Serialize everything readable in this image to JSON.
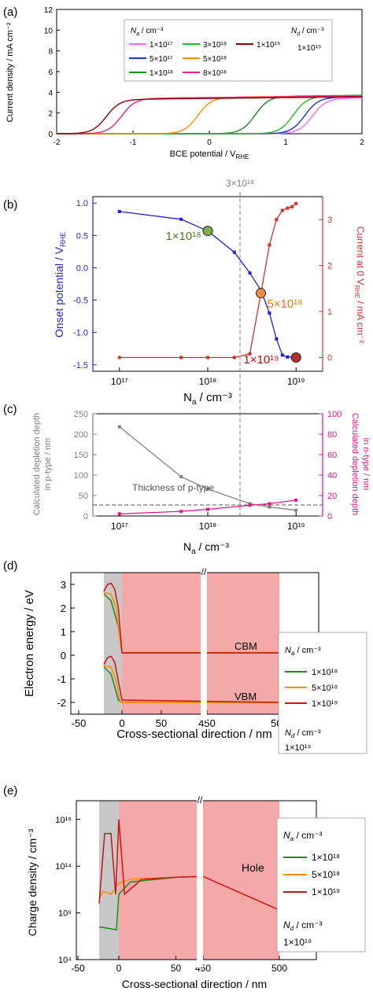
{
  "colors": {
    "axis_red": "#d0312d",
    "axis_blue": "#2222cc",
    "axis_gray": "#808080",
    "axis_pink": "#e0168a",
    "shade_gray": "#c8c8c8",
    "shade_red": "#f5a8a8"
  },
  "panel_a": {
    "label": "(a)",
    "ylabel": "Current density / mA cm⁻²",
    "xlabel_main": "BCE potential / V",
    "xlabel_sub": "RHE",
    "yticks": [
      "0",
      "2",
      "4",
      "6",
      "8",
      "10",
      "12"
    ],
    "xticks": [
      "-2",
      "-1",
      "0",
      "1",
      "2"
    ],
    "legend": {
      "na_title": "N",
      "na_sub": "a",
      "na_unit": " / cm⁻³",
      "nd_title": "N",
      "nd_sub": "d",
      "nd_unit": " / cm⁻³",
      "nd_value": "1×10¹⁹",
      "entries": [
        {
          "label": "1×10¹⁷",
          "color": "#ff66ff"
        },
        {
          "label": "5×10¹⁷",
          "color": "#2233cc"
        },
        {
          "label": "1×10¹⁸",
          "color": "#1a8c1a"
        },
        {
          "label": "3×10¹⁸",
          "color": "#22bb22"
        },
        {
          "label": "5×10¹⁸",
          "color": "#ff8c00"
        },
        {
          "label": "8×10¹⁸",
          "color": "#ee2277"
        },
        {
          "label": "1×10¹⁹",
          "color": "#8b0000"
        }
      ]
    }
  },
  "panel_b": {
    "label": "(b)",
    "top_annotation": "3×10¹⁸",
    "ylabel_left_main": "Onset potential / V",
    "ylabel_left_sub": "RHE",
    "ylabel_right_pre": "Current at 0 V",
    "ylabel_right_sub": "RHE",
    "ylabel_right_post": " / mA cm⁻²",
    "xlabel": "N",
    "xlabel_sub": "a",
    "xlabel_unit": "  / cm⁻³",
    "yticks_left": [
      "1.0",
      "0.5",
      "0.0",
      "-0.5",
      "-1.0",
      "-1.5"
    ],
    "yticks_right": [
      "3",
      "2",
      "1",
      "0"
    ],
    "xticks": [
      "10¹⁷",
      "10¹⁸",
      "10¹⁹"
    ],
    "annotations": [
      {
        "text": "1×10¹⁸",
        "color": "#4a7a1a"
      },
      {
        "text": "5×10¹⁸",
        "color": "#e07b00"
      },
      {
        "text": "1×10¹⁹",
        "color": "#b01010"
      }
    ]
  },
  "panel_c": {
    "label": "(c)",
    "ylabel_left_1": "Calculated depletion depth",
    "ylabel_left_2": "in p-type / nm",
    "ylabel_right_1": "Calculated depletion depth",
    "ylabel_right_2": "in n-type / nm",
    "xlabel": "N",
    "xlabel_sub": "a",
    "xlabel_unit": "  / cm⁻³",
    "yticks_left": [
      "250",
      "200",
      "150",
      "100",
      "50",
      "0"
    ],
    "yticks_right": [
      "100",
      "80",
      "60",
      "40",
      "20",
      "0"
    ],
    "xticks": [
      "10¹⁷",
      "10¹⁸",
      "10¹⁹"
    ],
    "annotation": "Thickness of p-type"
  },
  "panel_d": {
    "label": "(d)",
    "ylabel": "Electron energy / eV",
    "xlabel": "Cross-sectional direction / nm",
    "yticks": [
      "3",
      "2",
      "1",
      "0",
      "-1",
      "-2"
    ],
    "xticks": [
      "-50",
      "0",
      "50",
      "450",
      "500"
    ],
    "cbm_label": "CBM",
    "vbm_label": "VBM",
    "legend": {
      "na_title": "N",
      "na_sub": "a",
      "na_unit": " / cm⁻³",
      "nd_title": "N",
      "nd_sub": "d",
      "nd_unit": " / cm⁻³",
      "nd_value": "1×10¹⁹",
      "entries": [
        {
          "label": "1×10¹⁸",
          "color": "#1a8c1a"
        },
        {
          "label": "5×10¹⁸",
          "color": "#ff8c00"
        },
        {
          "label": "1×10¹⁹",
          "color": "#cc1111"
        }
      ]
    }
  },
  "panel_e": {
    "label": "(e)",
    "ylabel": "Charge density / cm⁻³",
    "xlabel": "Cross-sectional direction / nm",
    "yticks": [
      "10¹⁹",
      "10¹⁴",
      "10⁹",
      "10⁴"
    ],
    "xticks": [
      "-50",
      "0",
      "50",
      "450",
      "500"
    ],
    "hole_label": "Hole",
    "legend": {
      "na_title": "N",
      "na_sub": "a",
      "na_unit": " / cm⁻³",
      "nd_title": "N",
      "nd_sub": "d",
      "nd_unit": " / cm⁻³",
      "nd_value": "1×10¹⁹",
      "entries": [
        {
          "label": "1×10¹⁸",
          "color": "#1a8c1a"
        },
        {
          "label": "5×10¹⁸",
          "color": "#ff8c00"
        },
        {
          "label": "1×10¹⁹",
          "color": "#cc1111"
        }
      ]
    }
  },
  "chart_data": [
    {
      "type": "line",
      "panel": "a",
      "xlabel": "BCE potential / VRHE",
      "ylabel": "Current density / mA cm-2",
      "xlim": [
        -2,
        2
      ],
      "ylim": [
        0,
        12
      ],
      "series": [
        {
          "name": "1×10¹⁷",
          "onset": 1.35,
          "plateau": 3.4
        },
        {
          "name": "5×10¹⁷",
          "onset": 1.25,
          "plateau": 3.5
        },
        {
          "name": "1×10¹⁸",
          "onset": 0.6,
          "plateau": 3.6
        },
        {
          "name": "3×10¹⁸",
          "onset": 1.1,
          "plateau": 3.6
        },
        {
          "name": "5×10¹⁸",
          "onset": -0.15,
          "plateau": 3.5
        },
        {
          "name": "8×10¹⁸",
          "onset": -1.15,
          "plateau": 3.4
        },
        {
          "name": "1×10¹⁹",
          "onset": -1.35,
          "plateau": 3.3
        }
      ]
    },
    {
      "type": "line",
      "panel": "b",
      "xlabel": "Na / cm-3",
      "xscale": "log",
      "xlim": [
        5e+16,
        2e+19
      ],
      "ylim_left": [
        -1.6,
        1.1
      ],
      "ylim_right": [
        -0.3,
        3.5
      ],
      "series": [
        {
          "name": "Onset potential",
          "axis": "left",
          "x": [
            1e+17,
            5e+17,
            1e+18,
            2e+18,
            3e+18,
            4e+18,
            5e+18,
            6e+18,
            7e+18,
            8e+18,
            1e+19
          ],
          "y": [
            0.87,
            0.75,
            0.57,
            0.24,
            -0.08,
            -0.35,
            -0.7,
            -1.1,
            -1.35,
            -1.38,
            -1.38
          ]
        },
        {
          "name": "Current at 0 V",
          "axis": "right",
          "x": [
            1e+17,
            5e+17,
            1e+18,
            2e+18,
            3e+18,
            4e+18,
            5e+18,
            6e+18,
            7e+18,
            8e+18,
            9e+18,
            1e+19
          ],
          "y": [
            0,
            0,
            0,
            0,
            0.08,
            1.4,
            2.45,
            3.0,
            3.2,
            3.25,
            3.28,
            3.35
          ]
        }
      ]
    },
    {
      "type": "line",
      "panel": "c",
      "xscale": "log",
      "xlim": [
        5e+16,
        2e+19
      ],
      "ylim_left": [
        0,
        250
      ],
      "ylim_right": [
        0,
        100
      ],
      "hline_left": 27,
      "series": [
        {
          "name": "p-type depletion",
          "axis": "left",
          "x": [
            1e+17,
            5e+17,
            1e+18,
            3e+18,
            5e+18,
            1e+19
          ],
          "y": [
            218,
            96,
            66,
            30,
            22,
            14
          ]
        },
        {
          "name": "n-type depletion",
          "axis": "right",
          "x": [
            1e+17,
            5e+17,
            1e+18,
            3e+18,
            5e+18,
            1e+19
          ],
          "y": [
            2,
            4.5,
            6.5,
            10.5,
            12,
            15.5
          ]
        }
      ]
    },
    {
      "type": "line",
      "panel": "d",
      "ylim": [
        -2.5,
        3.5
      ],
      "series": [
        {
          "name": "1×10¹⁸",
          "cbm": [
            [
              -25,
              2.6
            ],
            [
              -15,
              2.3
            ],
            [
              -5,
              1.2
            ],
            [
              0,
              0.1
            ],
            [
              5,
              0.1
            ],
            [
              500,
              0.1
            ]
          ],
          "vbm": [
            [
              -25,
              -0.5
            ],
            [
              -15,
              -0.8
            ],
            [
              -5,
              -1.9
            ],
            [
              0,
              -2
            ],
            [
              5,
              -2
            ],
            [
              500,
              -2
            ]
          ]
        },
        {
          "name": "5×10¹⁸",
          "cbm": [
            [
              -25,
              2.65
            ],
            [
              -15,
              2.6
            ],
            [
              -8,
              2.0
            ],
            [
              -3,
              0.7
            ],
            [
              0,
              0.1
            ],
            [
              500,
              0.1
            ]
          ],
          "vbm": [
            [
              -25,
              -0.45
            ],
            [
              -15,
              -0.5
            ],
            [
              -8,
              -1.1
            ],
            [
              -3,
              -1.9
            ],
            [
              0,
              -2
            ],
            [
              500,
              -2
            ]
          ]
        },
        {
          "name": "1×10¹⁹",
          "cbm": [
            [
              -25,
              2.7
            ],
            [
              -20,
              3.0
            ],
            [
              -15,
              3.05
            ],
            [
              -10,
              2.8
            ],
            [
              -5,
              2.0
            ],
            [
              0,
              0.1
            ],
            [
              500,
              0.1
            ]
          ],
          "vbm": [
            [
              -25,
              -0.4
            ],
            [
              -20,
              -0.1
            ],
            [
              -15,
              -0.05
            ],
            [
              -10,
              -0.3
            ],
            [
              -5,
              -1.1
            ],
            [
              0,
              -1.9
            ],
            [
              500,
              -2
            ]
          ]
        }
      ]
    },
    {
      "type": "line",
      "panel": "e",
      "yscale": "log",
      "ylim": [
        10000.0,
        1e+21
      ],
      "series": [
        {
          "name": "1×10¹⁸",
          "y_log10_trace": [
            [
              -25,
              7.5
            ],
            [
              -3,
              7.2
            ],
            [
              0,
              11
            ],
            [
              10,
              12.3
            ],
            [
              50,
              12.8
            ],
            [
              450,
              12.9
            ]
          ]
        },
        {
          "name": "5×10¹⁸",
          "y_log10_trace": [
            [
              -25,
              10.5
            ],
            [
              -20,
              11.3
            ],
            [
              -10,
              11
            ],
            [
              -3,
              11.8
            ],
            [
              0,
              12.2
            ],
            [
              10,
              12.6
            ],
            [
              50,
              12.8
            ],
            [
              450,
              12.9
            ]
          ]
        },
        {
          "name": "1×10¹⁹",
          "y_log10_trace": [
            [
              -25,
              10
            ],
            [
              -18,
              17.5
            ],
            [
              -10,
              17.5
            ],
            [
              -4,
              11
            ],
            [
              0,
              19
            ],
            [
              5,
              11
            ],
            [
              20,
              12.6
            ],
            [
              50,
              12.8
            ],
            [
              450,
              12.9
            ],
            [
              500,
              9.3
            ]
          ]
        }
      ]
    }
  ]
}
